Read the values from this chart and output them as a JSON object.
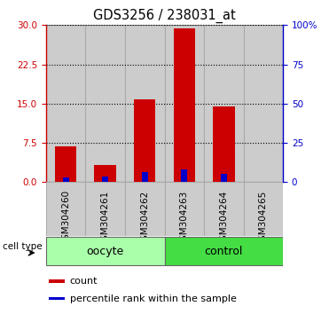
{
  "title": "GDS3256 / 238031_at",
  "categories": [
    "GSM304260",
    "GSM304261",
    "GSM304262",
    "GSM304263",
    "GSM304264",
    "GSM304265"
  ],
  "count_values": [
    6.8,
    3.2,
    15.8,
    29.3,
    14.5,
    0.0
  ],
  "percentile_values": [
    3.0,
    3.5,
    6.5,
    8.0,
    5.5,
    0.0
  ],
  "left_ylim": [
    0,
    30
  ],
  "right_ylim": [
    0,
    100
  ],
  "left_yticks": [
    0,
    7.5,
    15,
    22.5,
    30
  ],
  "right_yticks": [
    0,
    25,
    50,
    75,
    100
  ],
  "right_yticklabels": [
    "0",
    "25",
    "50",
    "75",
    "100%"
  ],
  "bar_color": "#cc0000",
  "percentile_color": "#0000cc",
  "bg_color": "#cccccc",
  "group_labels": [
    "oocyte",
    "control"
  ],
  "group_ranges": [
    [
      0,
      3
    ],
    [
      3,
      6
    ]
  ],
  "group_colors": [
    "#aaffaa",
    "#44dd44"
  ],
  "cell_type_label": "cell type",
  "legend_items": [
    "count",
    "percentile rank within the sample"
  ],
  "legend_colors": [
    "#cc0000",
    "#0000cc"
  ],
  "left_axis_color": "#cc0000",
  "right_axis_color": "#0000cc",
  "bar_width": 0.55,
  "tick_label_fontsize": 7.5,
  "title_fontsize": 10.5,
  "group_label_fontsize": 9,
  "legend_fontsize": 8
}
